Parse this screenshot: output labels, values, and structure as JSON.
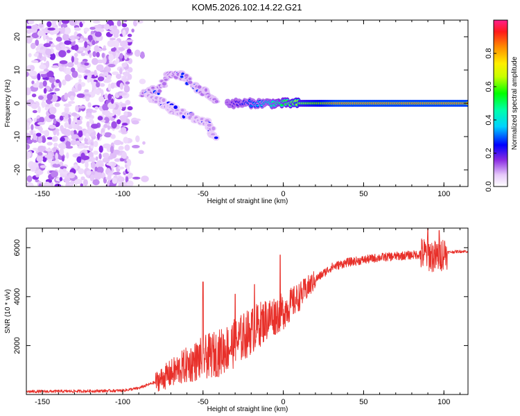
{
  "figure": {
    "title": "KOM5.2026.102.14.22.G21"
  },
  "chart_data": [
    {
      "type": "heatmap",
      "title": "KOM5.2026.102.14.22.G21",
      "xlabel": "Height of straight line (km)",
      "ylabel": "Frequency (Hz)",
      "xlim": [
        -160,
        115
      ],
      "ylim": [
        -25,
        25
      ],
      "xticks": [
        -150,
        -100,
        -50,
        0,
        50,
        100
      ],
      "yticks": [
        -20,
        -10,
        0,
        10,
        20
      ],
      "colorbar": {
        "label": "Normalized spectral amplitude",
        "range": [
          0,
          1
        ],
        "ticks": [
          0.0,
          0.2,
          0.4,
          0.6,
          0.8
        ],
        "tick_labels": [
          "0.0",
          "0.2",
          "0.4",
          "0.6",
          "0.8"
        ]
      },
      "features": [
        {
          "name": "noise-field",
          "x_range": [
            -160,
            -95
          ],
          "y_range": [
            -25,
            25
          ],
          "amplitude": 0.08
        },
        {
          "name": "ridge-up",
          "points": [
            [
              -88,
              3
            ],
            [
              -78,
              4
            ],
            [
              -70,
              9
            ],
            [
              -62,
              8
            ],
            [
              -55,
              5
            ],
            [
              -48,
              3
            ],
            [
              -42,
              1
            ]
          ],
          "amplitude": 0.12
        },
        {
          "name": "ridge-down",
          "points": [
            [
              -85,
              2
            ],
            [
              -75,
              0
            ],
            [
              -68,
              -2
            ],
            [
              -58,
              -4
            ],
            [
              -48,
              -6
            ],
            [
              -42,
              -10
            ]
          ],
          "amplitude": 0.1
        },
        {
          "name": "carrier-line",
          "x_range": [
            -35,
            115
          ],
          "y": 0,
          "amplitude_start": 0.15,
          "amplitude_end": 0.95
        }
      ]
    },
    {
      "type": "line",
      "xlabel": "Height of straight line (km)",
      "ylabel": "SNR (10 * v/v)",
      "xlim": [
        -160,
        115
      ],
      "ylim": [
        0,
        6800
      ],
      "xticks": [
        -150,
        -100,
        -50,
        0,
        50,
        100
      ],
      "yticks": [
        2000,
        4000,
        6000
      ],
      "series": [
        {
          "name": "SNR",
          "color": "#e8302a",
          "x": [
            -160,
            -140,
            -120,
            -100,
            -90,
            -80,
            -70,
            -60,
            -50,
            -40,
            -30,
            -20,
            -10,
            0,
            10,
            20,
            30,
            40,
            50,
            60,
            70,
            80,
            90,
            95,
            100,
            110,
            115
          ],
          "y": [
            120,
            130,
            140,
            160,
            260,
            500,
            850,
            1200,
            1500,
            1700,
            2100,
            2600,
            3100,
            3400,
            4000,
            4700,
            5200,
            5400,
            5500,
            5600,
            5650,
            5700,
            5750,
            5600,
            5800,
            5850,
            5850
          ]
        }
      ],
      "annotations": [
        {
          "name": "spike",
          "x": -50,
          "y": 4600
        },
        {
          "name": "spike",
          "x": -30,
          "y": 4100
        },
        {
          "name": "spike",
          "x": -18,
          "y": 4500
        },
        {
          "name": "spike",
          "x": -2,
          "y": 5700
        },
        {
          "name": "spike",
          "x": 90,
          "y": 6800
        },
        {
          "name": "spike",
          "x": 97,
          "y": 6700
        }
      ]
    }
  ]
}
